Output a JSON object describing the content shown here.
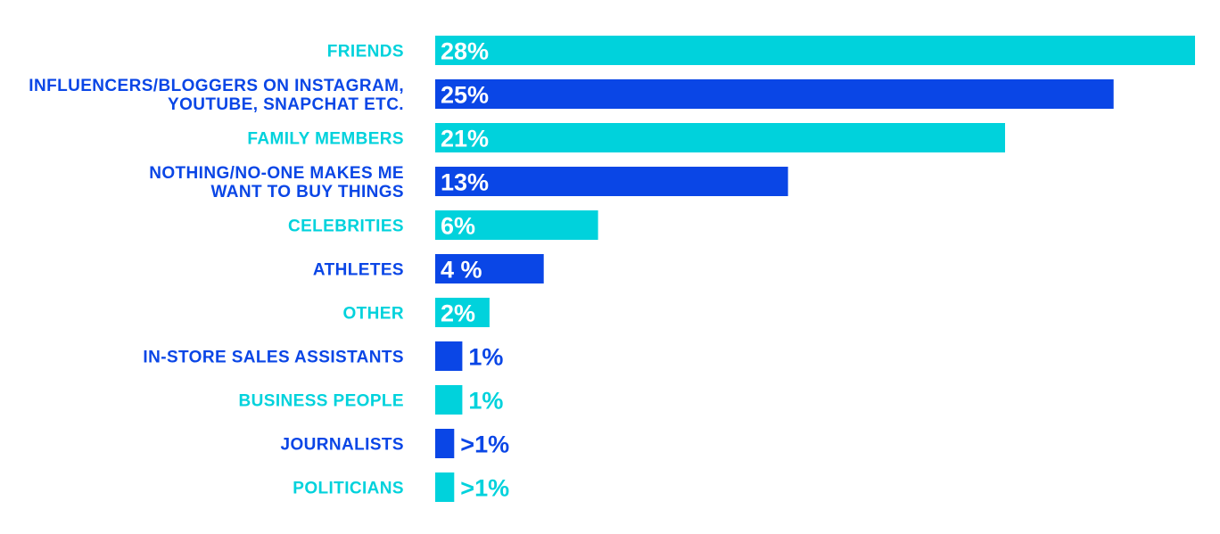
{
  "chart_data": {
    "type": "bar",
    "orientation": "horizontal",
    "categories": [
      [
        "FRIENDS"
      ],
      [
        "INFLUENCERS/BLOGGERS ON INSTAGRAM,",
        "YOUTUBE, SNAPCHAT ETC."
      ],
      [
        "FAMILY MEMBERS"
      ],
      [
        "NOTHING/NO-ONE MAKES ME",
        "WANT TO BUY THINGS"
      ],
      [
        "CELEBRITIES"
      ],
      [
        "ATHLETES"
      ],
      [
        "OTHER"
      ],
      [
        "IN-STORE SALES ASSISTANTS"
      ],
      [
        "BUSINESS PEOPLE"
      ],
      [
        "JOURNALISTS"
      ],
      [
        "POLITICIANS"
      ]
    ],
    "values": [
      28,
      25,
      21,
      13,
      6,
      4,
      2,
      1,
      1,
      0.7,
      0.7
    ],
    "value_labels": [
      "28%",
      "25%",
      "21%",
      "13%",
      "6%",
      "4 %",
      "2%",
      "1%",
      "1%",
      ">1%",
      ">1%"
    ],
    "xlim": [
      0,
      28
    ],
    "grid": false,
    "legend": "none",
    "colors": {
      "cyan": "#00D2DC",
      "blue": "#0A46E6"
    },
    "bar_colors": [
      "cyan",
      "blue",
      "cyan",
      "blue",
      "cyan",
      "blue",
      "cyan",
      "blue",
      "cyan",
      "blue",
      "cyan"
    ]
  }
}
